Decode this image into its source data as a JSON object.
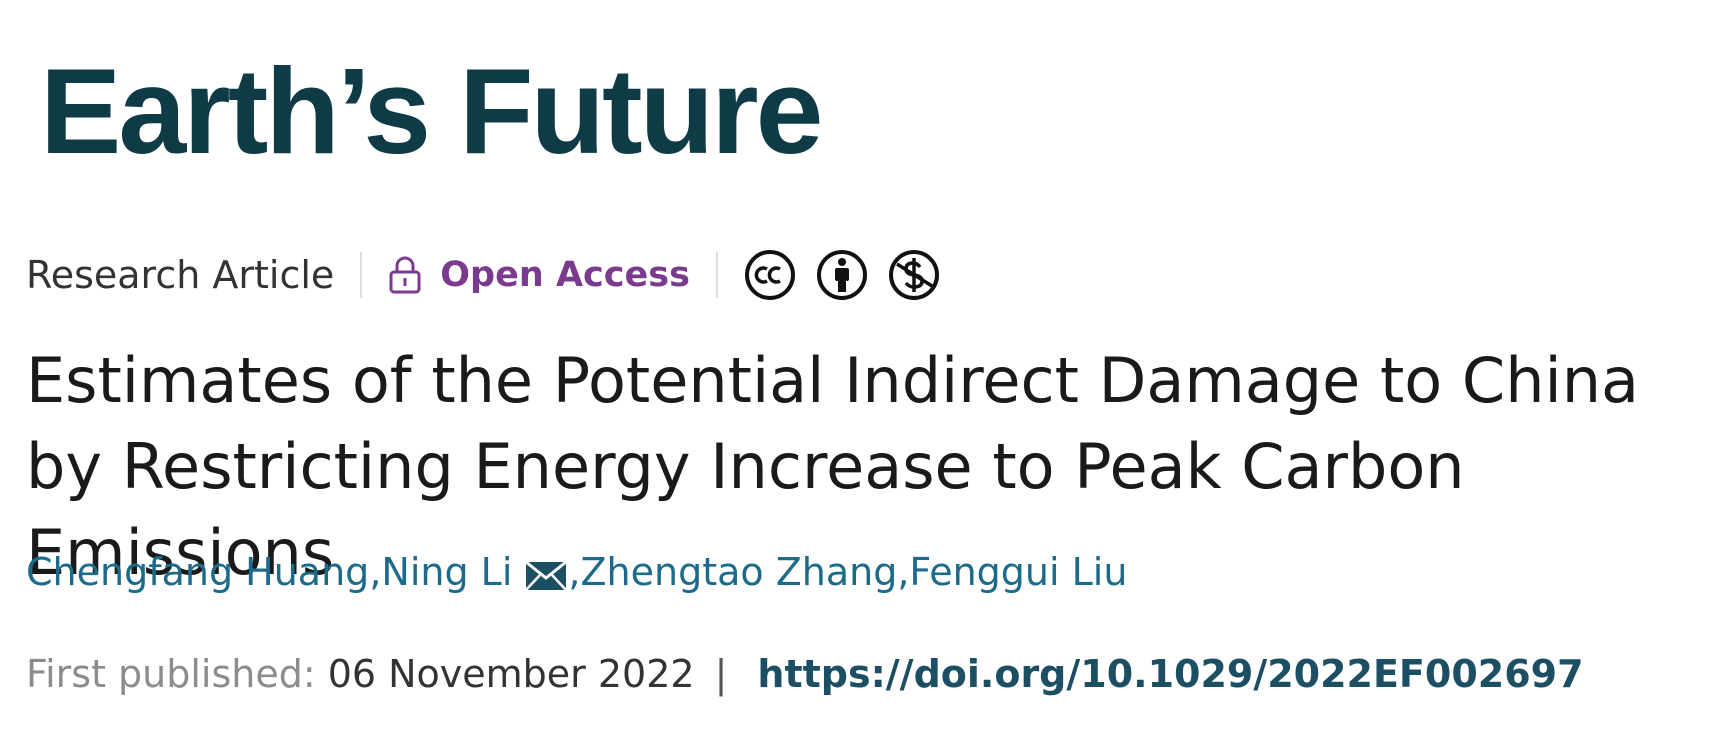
{
  "journal": {
    "name": "Earth’s Future",
    "brand_color": "#0e3b45"
  },
  "meta": {
    "article_type": "Research Article",
    "access_label": "Open Access",
    "access_color": "#7a3b8f",
    "license_icons": [
      "creative-commons-icon",
      "attribution-icon",
      "noncommercial-icon"
    ]
  },
  "title": "Estimates of the Potential Indirect Damage to China by Restricting Energy Increase to Peak Carbon Emissions",
  "authors": {
    "list": [
      {
        "name": "Chengfang Huang",
        "corresponding": false
      },
      {
        "name": "Ning Li",
        "corresponding": true
      },
      {
        "name": "Zhengtao Zhang",
        "corresponding": false
      },
      {
        "name": "Fenggui Liu",
        "corresponding": false
      }
    ],
    "link_color": "#1c6b8a"
  },
  "publication": {
    "label": "First published:",
    "date": "06 November 2022",
    "separator": "|",
    "doi": "https://doi.org/10.1029/2022EF002697"
  }
}
